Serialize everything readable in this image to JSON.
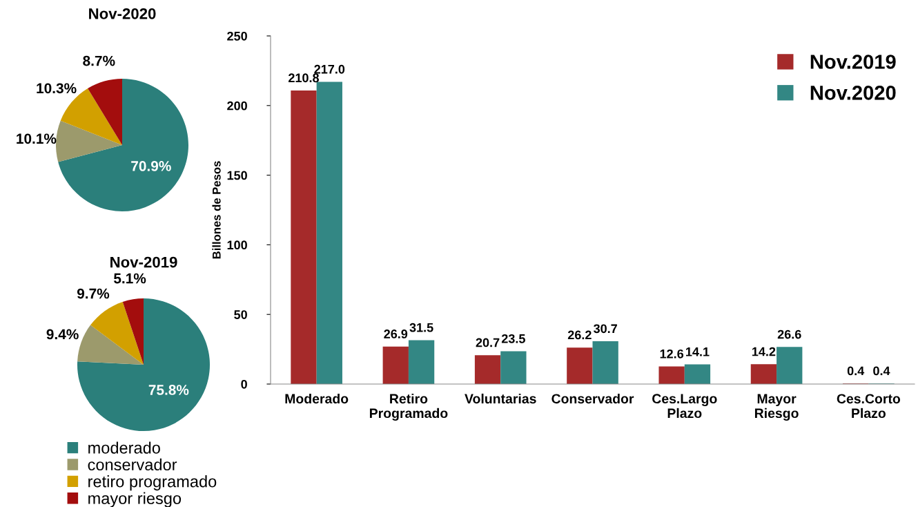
{
  "chart_data": [
    {
      "type": "pie",
      "title": "Nov-2020",
      "categories": [
        "moderado",
        "conservador",
        "retiro programado",
        "mayor riesgo"
      ],
      "values": [
        70.9,
        10.1,
        10.3,
        8.7
      ],
      "colors": [
        "#2b7f7b",
        "#9c9a6c",
        "#d2a000",
        "#a30d0d"
      ],
      "value_labels": [
        "70.9%",
        "10.1%",
        "10.3%",
        "8.7%"
      ],
      "legend": "bottom"
    },
    {
      "type": "pie",
      "title": "Nov-2019",
      "categories": [
        null,
        null,
        null,
        null
      ],
      "values": [
        75.8,
        9.4,
        9.7,
        5.1
      ],
      "colors": [
        "#2b7f7b",
        "#9c9a6c",
        "#d2a000",
        "#a30d0d"
      ],
      "value_labels": [
        "75.8%",
        "9.4%",
        "9.7%",
        "5.1%"
      ]
    },
    {
      "type": "bar",
      "ylabel": "Billones de Pesos",
      "categories": [
        "Moderado",
        "Retiro\nProgramado",
        "Voluntarias",
        "Conservador",
        "Ces.Largo\nPlazo",
        "Mayor\nRiesgo",
        "Ces.Corto\nPlazo"
      ],
      "series": [
        {
          "name": "Nov.2019",
          "color": "#a52a2a",
          "values": [
            210.8,
            26.9,
            20.7,
            26.2,
            12.6,
            14.2,
            0.4
          ],
          "value_labels": [
            "210.8",
            "26.9",
            "20.7",
            "26.2",
            "12.6",
            "14.2",
            "0.4"
          ]
        },
        {
          "name": "Nov.2020",
          "color": "#338784",
          "values": [
            217.0,
            31.5,
            23.5,
            30.7,
            14.1,
            26.6,
            0.4
          ],
          "value_labels": [
            "217.0",
            "31.5",
            "23.5",
            "30.7",
            "14.1",
            "26.6",
            "0.4"
          ]
        }
      ],
      "ylim": [
        0,
        250
      ],
      "yticks": [
        0,
        50,
        100,
        150,
        200,
        250
      ],
      "grid": false,
      "legend": "top right"
    }
  ]
}
